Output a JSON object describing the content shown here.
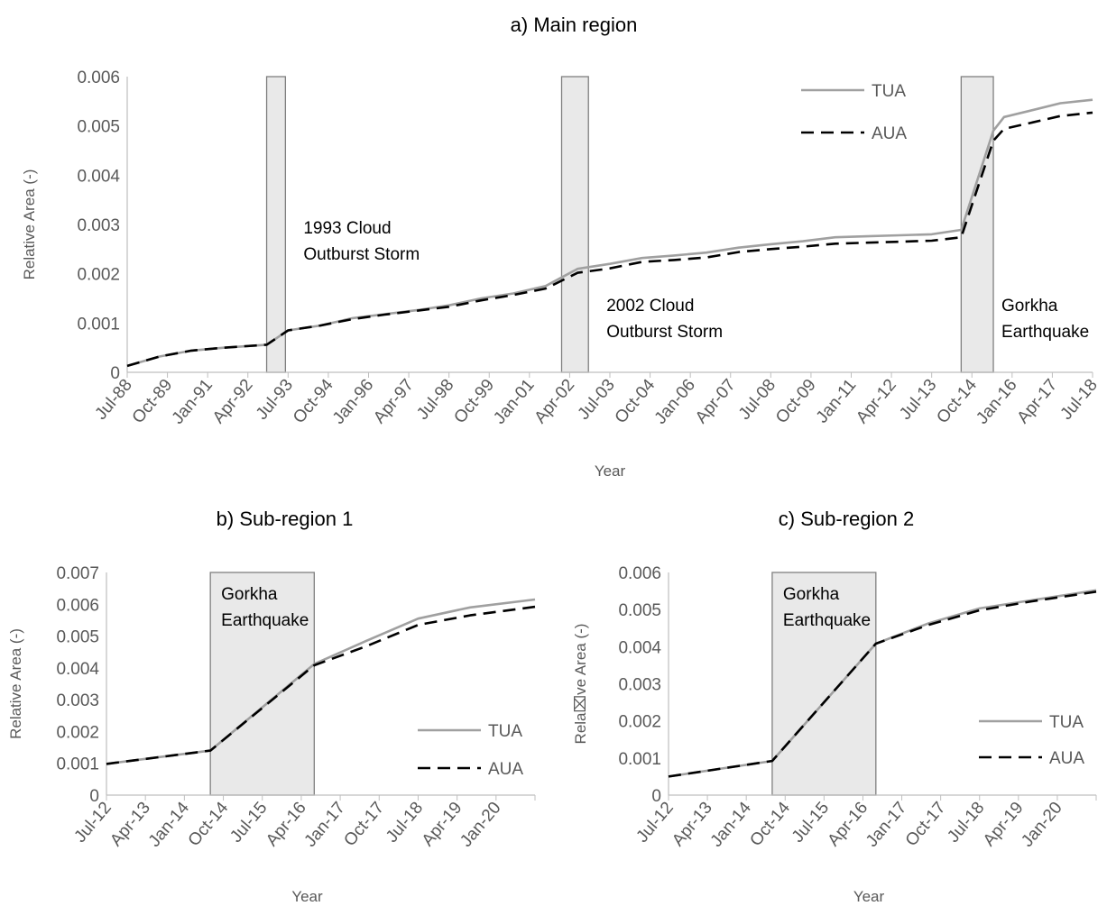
{
  "chart_data": [
    {
      "type": "line",
      "title": "a) Main region",
      "xlabel": "Year",
      "ylabel": "Relative Area (-)",
      "ylim": [
        0,
        0.006
      ],
      "yticks": [
        "0",
        "0.001",
        "0.002",
        "0.003",
        "0.004",
        "0.005",
        "0.006"
      ],
      "xticks": [
        "Jul-88",
        "Oct-89",
        "Jan-91",
        "Apr-92",
        "Jul-93",
        "Oct-94",
        "Jan-96",
        "Apr-97",
        "Jul-98",
        "Oct-99",
        "Jan-01",
        "Apr-02",
        "Jul-03",
        "Oct-04",
        "Jan-06",
        "Apr-07",
        "Jul-08",
        "Oct-09",
        "Jan-11",
        "Apr-12",
        "Jul-13",
        "Oct-14",
        "Jan-16",
        "Apr-17",
        "Jul-18"
      ],
      "legend": "top-right",
      "series": [
        {
          "name": "TUA",
          "color": "#a0a0a0",
          "dash": "solid",
          "x": [
            "Jul-88",
            "Jul-89",
            "Jul-90",
            "Jul-91",
            "Nov-92",
            "Jul-93",
            "Jul-94",
            "Jul-95",
            "Jul-96",
            "Jul-97",
            "Jul-98",
            "Jul-99",
            "Jul-00",
            "Jul-01",
            "Jul-02",
            "Jul-03",
            "Jul-04",
            "Jul-05",
            "Jul-06",
            "Jul-07",
            "Jul-08",
            "Jul-09",
            "Jul-10",
            "Jul-11",
            "Jul-12",
            "Jul-13",
            "Jun-14",
            "Jun-15",
            "Oct-15",
            "Jul-16",
            "Jul-17",
            "Jul-18"
          ],
          "y": [
            0.00013,
            0.00032,
            0.00044,
            0.0005,
            0.00056,
            0.00085,
            0.00095,
            0.0011,
            0.00118,
            0.00126,
            0.00136,
            0.0015,
            0.0016,
            0.00175,
            0.0021,
            0.0022,
            0.00232,
            0.00237,
            0.00243,
            0.00253,
            0.0026,
            0.00266,
            0.00274,
            0.00276,
            0.00278,
            0.0028,
            0.00289,
            0.0049,
            0.00518,
            0.0053,
            0.00546,
            0.00553
          ]
        },
        {
          "name": "AUA",
          "color": "#000000",
          "dash": "dashed",
          "x": [
            "Jul-88",
            "Jul-89",
            "Jul-90",
            "Jul-91",
            "Nov-92",
            "Jul-93",
            "Jul-94",
            "Jul-95",
            "Jul-96",
            "Jul-97",
            "Jul-98",
            "Jul-99",
            "Jul-00",
            "Jul-01",
            "Jul-02",
            "Jul-03",
            "Jul-04",
            "Jul-05",
            "Jul-06",
            "Jul-07",
            "Jul-08",
            "Jul-09",
            "Jul-10",
            "Jul-11",
            "Jul-12",
            "Jul-13",
            "Jun-14",
            "Jun-15",
            "Oct-15",
            "Jul-16",
            "Jul-17",
            "Jul-18"
          ],
          "y": [
            0.00013,
            0.00032,
            0.00044,
            0.0005,
            0.00056,
            0.00085,
            0.00095,
            0.00108,
            0.00117,
            0.00125,
            0.00133,
            0.00146,
            0.00157,
            0.0017,
            0.00202,
            0.00211,
            0.00224,
            0.00228,
            0.00233,
            0.00244,
            0.0025,
            0.00255,
            0.00261,
            0.00263,
            0.00265,
            0.00267,
            0.00274,
            0.0047,
            0.00494,
            0.00505,
            0.0052,
            0.00527
          ]
        }
      ],
      "shaded_periods": [
        {
          "start": "Nov-92",
          "end": "Jun-93",
          "label_lines": [
            "1993 Cloud",
            "Outburst Storm"
          ],
          "label_side": "right-upper"
        },
        {
          "start": "Jan-02",
          "end": "Nov-02",
          "label_lines": [
            "2002 Cloud",
            "Outburst Storm"
          ],
          "label_side": "right-lower"
        },
        {
          "start": "Jun-14",
          "end": "Jun-15",
          "label_lines": [
            "Gorkha",
            "Earthquake"
          ],
          "label_side": "right-lower"
        }
      ]
    },
    {
      "type": "line",
      "title": "b) Sub-region 1",
      "xlabel": "Year",
      "ylabel": "Relative Area (-)",
      "ylim": [
        0,
        0.007
      ],
      "yticks": [
        "0",
        "0.001",
        "0.002",
        "0.003",
        "0.004",
        "0.005",
        "0.006",
        "0.007"
      ],
      "xticks": [
        "Jul-12",
        "Apr-13",
        "Jan-14",
        "Oct-14",
        "Jul-15",
        "Apr-16",
        "Jan-17",
        "Oct-17",
        "Jul-18",
        "Apr-19",
        "Jan-20"
      ],
      "legend": "bottom-right",
      "series": [
        {
          "name": "TUA",
          "color": "#a0a0a0",
          "dash": "solid",
          "x": [
            "Jul-12",
            "Jul-14",
            "Jul-16",
            "Jul-17",
            "Jul-18",
            "Jul-19",
            "Oct-20"
          ],
          "y": [
            0.00098,
            0.0014,
            0.00412,
            0.00485,
            0.00555,
            0.0059,
            0.00615
          ]
        },
        {
          "name": "AUA",
          "color": "#000000",
          "dash": "dashed",
          "x": [
            "Jul-12",
            "Jul-14",
            "Jul-16",
            "Jul-17",
            "Jul-18",
            "Jul-19",
            "Oct-20"
          ],
          "y": [
            0.00098,
            0.0014,
            0.00408,
            0.00468,
            0.00535,
            0.00565,
            0.00592
          ]
        }
      ],
      "shaded_periods": [
        {
          "start": "Jul-14",
          "end": "Jul-16",
          "label_lines": [
            "Gorkha",
            "Earthquake"
          ],
          "label_side": "inside-top"
        }
      ]
    },
    {
      "type": "line",
      "title": "c) Sub-region 2",
      "xlabel": "Year",
      "ylabel": "Rela⌧ve Area (-)",
      "ylim": [
        0,
        0.006
      ],
      "yticks": [
        "0",
        "0.001",
        "0.002",
        "0.003",
        "0.004",
        "0.005",
        "0.006"
      ],
      "xticks": [
        "Jul-12",
        "Apr-13",
        "Jan-14",
        "Oct-14",
        "Jul-15",
        "Apr-16",
        "Jan-17",
        "Oct-17",
        "Jul-18",
        "Apr-19",
        "Jan-20"
      ],
      "legend": "bottom-right",
      "series": [
        {
          "name": "TUA",
          "color": "#a0a0a0",
          "dash": "solid",
          "x": [
            "Jul-12",
            "Jul-14",
            "Jul-16",
            "Jul-17",
            "Jul-18",
            "Jul-19",
            "Oct-20"
          ],
          "y": [
            0.0005,
            0.00092,
            0.00408,
            0.00462,
            0.00503,
            0.00525,
            0.00552
          ]
        },
        {
          "name": "AUA",
          "color": "#000000",
          "dash": "dashed",
          "x": [
            "Jul-12",
            "Jul-14",
            "Jul-16",
            "Jul-17",
            "Jul-18",
            "Jul-19",
            "Oct-20"
          ],
          "y": [
            0.0005,
            0.00092,
            0.00408,
            0.00458,
            0.00498,
            0.00522,
            0.00548
          ]
        }
      ],
      "shaded_periods": [
        {
          "start": "Jul-14",
          "end": "Jul-16",
          "label_lines": [
            "Gorkha",
            "Earthquake"
          ],
          "label_side": "inside-top"
        }
      ]
    }
  ]
}
